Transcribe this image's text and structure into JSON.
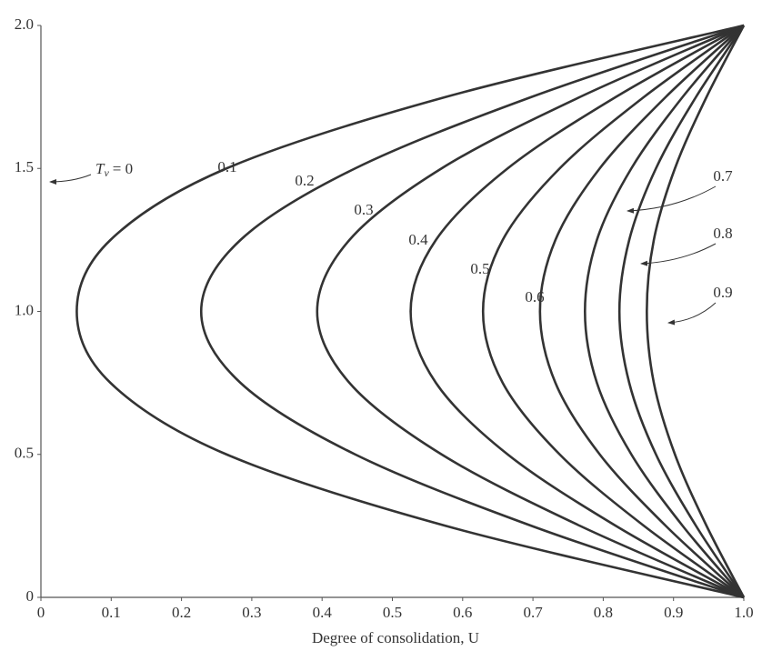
{
  "chart_data": {
    "type": "line",
    "x_label": "Degree of consolidation, U",
    "annotation": {
      "parts": [
        "T",
        "v",
        "= 0"
      ]
    },
    "depth": [
      0,
      0.25,
      0.5,
      0.75,
      1,
      1.25,
      1.5,
      1.75,
      2
    ],
    "series": [
      {
        "name": "0.1",
        "color": "#333333",
        "values": [
          1,
          0.576,
          0.264,
          0.099,
          0.051,
          0.099,
          0.264,
          0.576,
          1
        ]
      },
      {
        "name": "0.2",
        "color": "#333333",
        "values": [
          1,
          0.698,
          0.447,
          0.284,
          0.228,
          0.284,
          0.447,
          0.698,
          1
        ]
      },
      {
        "name": "0.3",
        "color": "#333333",
        "values": [
          1,
          0.767,
          0.57,
          0.439,
          0.393,
          0.439,
          0.57,
          0.767,
          1
        ]
      },
      {
        "name": "0.4",
        "color": "#333333",
        "values": [
          1,
          0.818,
          0.664,
          0.562,
          0.526,
          0.562,
          0.664,
          0.818,
          1
        ]
      },
      {
        "name": "0.5",
        "color": "#333333",
        "values": [
          1,
          0.858,
          0.738,
          0.657,
          0.629,
          0.657,
          0.738,
          0.858,
          1
        ]
      },
      {
        "name": "0.6",
        "color": "#333333",
        "values": [
          1,
          0.889,
          0.795,
          0.732,
          0.71,
          0.732,
          0.795,
          0.889,
          1
        ]
      },
      {
        "name": "0.7",
        "color": "#333333",
        "values": [
          1,
          0.913,
          0.84,
          0.791,
          0.774,
          0.791,
          0.84,
          0.913,
          1
        ]
      },
      {
        "name": "0.8",
        "color": "#333333",
        "values": [
          1,
          0.932,
          0.875,
          0.837,
          0.823,
          0.837,
          0.875,
          0.932,
          1
        ]
      },
      {
        "name": "0.9",
        "color": "#333333",
        "values": [
          1,
          0.947,
          0.902,
          0.872,
          0.862,
          0.872,
          0.902,
          0.947,
          1
        ]
      }
    ],
    "xlim": [
      0,
      1
    ],
    "xticks": [
      0,
      0.1,
      0.2,
      0.3,
      0.4,
      0.5,
      0.6,
      0.7,
      0.8,
      0.9,
      {
        "value": 1,
        "label": "1.0"
      }
    ],
    "ylim": [
      0,
      2
    ],
    "yticks": [
      0,
      0.5,
      {
        "value": 1,
        "label": "1.0"
      },
      1.5,
      {
        "value": 2,
        "label": "2.0"
      }
    ]
  }
}
